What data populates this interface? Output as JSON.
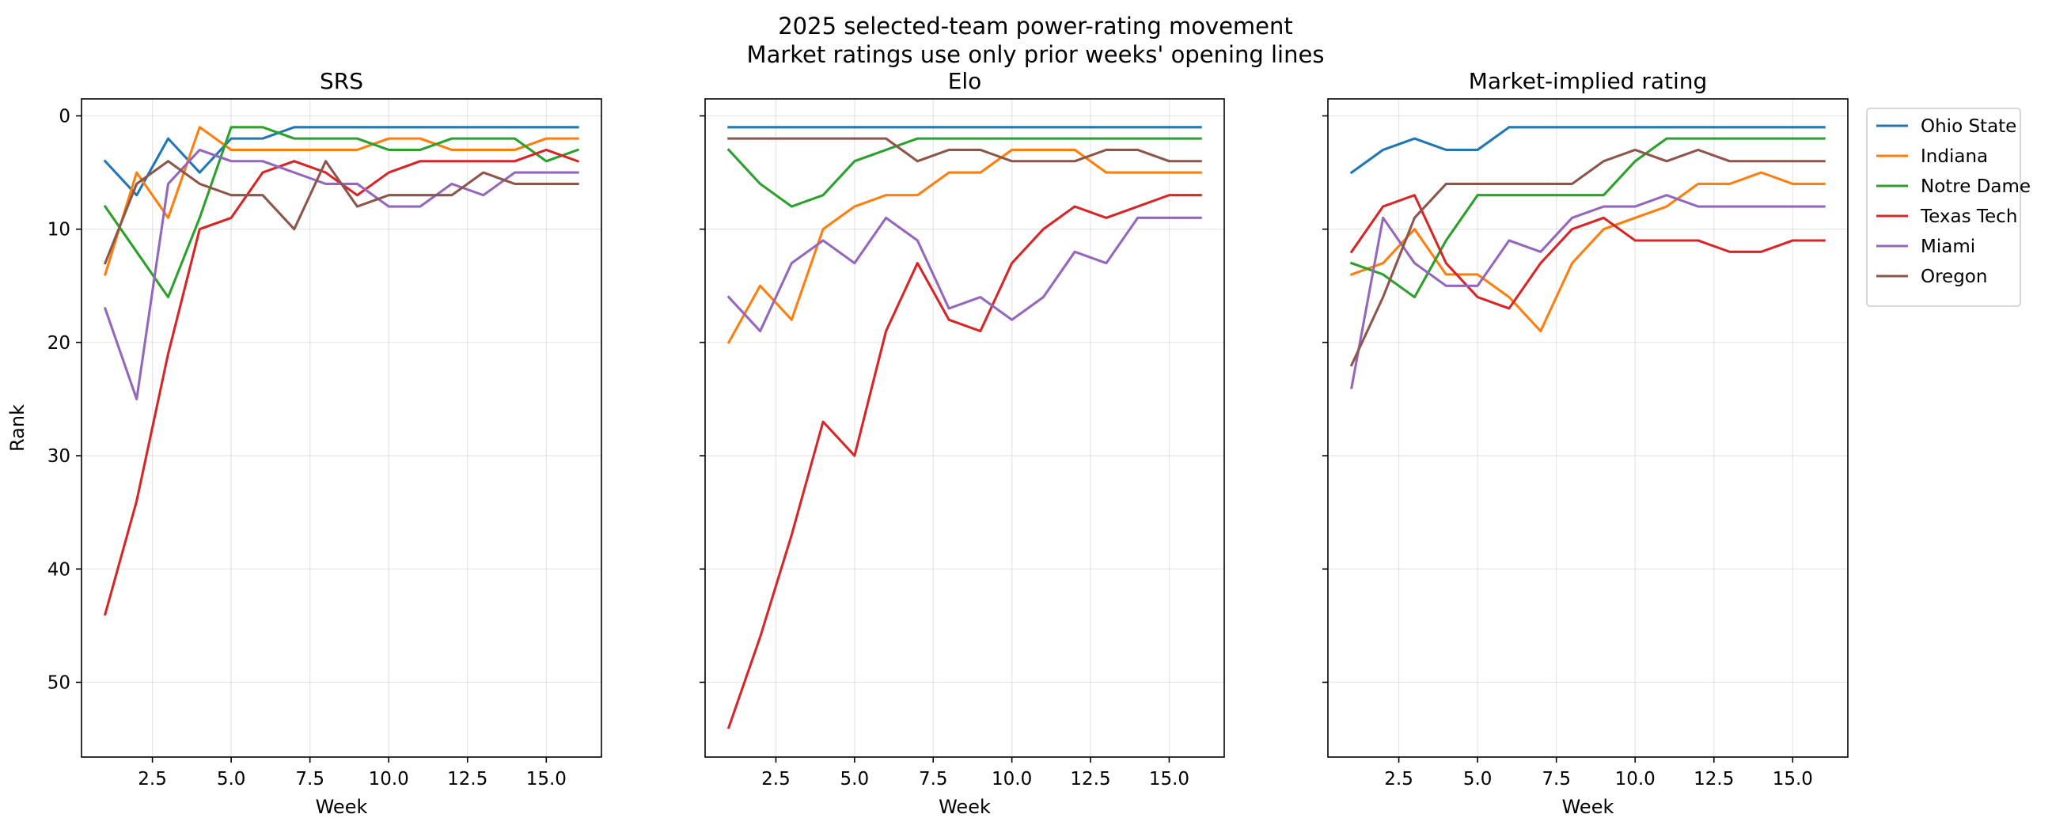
{
  "figure": {
    "title_line1": "2025 selected-team power-rating movement",
    "title_line2": "Market ratings use only prior weeks' opening lines"
  },
  "chart_data": [
    {
      "type": "line",
      "title": "SRS",
      "xlabel": "Week",
      "ylabel": "Rank",
      "y_inverted": true,
      "xlim": [
        0.25,
        16.75
      ],
      "ylim": [
        56.6,
        -1.5
      ],
      "xticks": [
        2.5,
        5.0,
        7.5,
        10.0,
        12.5,
        15.0
      ],
      "xtick_labels": [
        "2.5",
        "5.0",
        "7.5",
        "10.0",
        "12.5",
        "15.0"
      ],
      "yticks": [
        0,
        10,
        20,
        30,
        40,
        50
      ],
      "ytick_labels": [
        "0",
        "10",
        "20",
        "30",
        "40",
        "50"
      ],
      "grid": true,
      "x": [
        1,
        2,
        3,
        4,
        5,
        6,
        7,
        8,
        9,
        10,
        11,
        12,
        13,
        14,
        15,
        16
      ],
      "series": [
        {
          "name": "Ohio State",
          "color": "#1f77b4",
          "values": [
            4,
            7,
            2,
            5,
            2,
            2,
            1,
            1,
            1,
            1,
            1,
            1,
            1,
            1,
            1,
            1
          ]
        },
        {
          "name": "Indiana",
          "color": "#ff7f0e",
          "values": [
            14,
            5,
            9,
            1,
            3,
            3,
            3,
            3,
            3,
            2,
            2,
            3,
            3,
            3,
            2,
            2
          ]
        },
        {
          "name": "Notre Dame",
          "color": "#2ca02c",
          "values": [
            8,
            12,
            16,
            9,
            1,
            1,
            2,
            2,
            2,
            3,
            3,
            2,
            2,
            2,
            4,
            3
          ]
        },
        {
          "name": "Texas Tech",
          "color": "#d62728",
          "values": [
            44,
            34,
            21,
            10,
            9,
            5,
            4,
            5,
            7,
            5,
            4,
            4,
            4,
            4,
            3,
            4
          ]
        },
        {
          "name": "Miami",
          "color": "#9467bd",
          "values": [
            17,
            25,
            6,
            3,
            4,
            4,
            5,
            6,
            6,
            8,
            8,
            6,
            7,
            5,
            5,
            5
          ]
        },
        {
          "name": "Oregon",
          "color": "#8c564b",
          "values": [
            13,
            6,
            4,
            6,
            7,
            7,
            10,
            4,
            8,
            7,
            7,
            7,
            5,
            6,
            6,
            6
          ]
        }
      ]
    },
    {
      "type": "line",
      "title": "Elo",
      "xlabel": "Week",
      "ylabel": "",
      "y_inverted": true,
      "xlim": [
        0.25,
        16.75
      ],
      "ylim": [
        56.6,
        -1.5
      ],
      "xticks": [
        2.5,
        5.0,
        7.5,
        10.0,
        12.5,
        15.0
      ],
      "xtick_labels": [
        "2.5",
        "5.0",
        "7.5",
        "10.0",
        "12.5",
        "15.0"
      ],
      "yticks": [
        0,
        10,
        20,
        30,
        40,
        50
      ],
      "ytick_labels": [],
      "grid": true,
      "x": [
        1,
        2,
        3,
        4,
        5,
        6,
        7,
        8,
        9,
        10,
        11,
        12,
        13,
        14,
        15,
        16
      ],
      "series": [
        {
          "name": "Ohio State",
          "color": "#1f77b4",
          "values": [
            1,
            1,
            1,
            1,
            1,
            1,
            1,
            1,
            1,
            1,
            1,
            1,
            1,
            1,
            1,
            1
          ]
        },
        {
          "name": "Indiana",
          "color": "#ff7f0e",
          "values": [
            20,
            15,
            18,
            10,
            8,
            7,
            7,
            5,
            5,
            3,
            3,
            3,
            5,
            5,
            5,
            5
          ]
        },
        {
          "name": "Notre Dame",
          "color": "#2ca02c",
          "values": [
            3,
            6,
            8,
            7,
            4,
            3,
            2,
            2,
            2,
            2,
            2,
            2,
            2,
            2,
            2,
            2
          ]
        },
        {
          "name": "Texas Tech",
          "color": "#d62728",
          "values": [
            54,
            46,
            37,
            27,
            30,
            19,
            13,
            18,
            19,
            13,
            10,
            8,
            9,
            8,
            7,
            7
          ]
        },
        {
          "name": "Miami",
          "color": "#9467bd",
          "values": [
            16,
            19,
            13,
            11,
            13,
            9,
            11,
            17,
            16,
            18,
            16,
            12,
            13,
            9,
            9,
            9
          ]
        },
        {
          "name": "Oregon",
          "color": "#8c564b",
          "values": [
            2,
            2,
            2,
            2,
            2,
            2,
            4,
            3,
            3,
            4,
            4,
            4,
            3,
            3,
            4,
            4
          ]
        }
      ]
    },
    {
      "type": "line",
      "title": "Market-implied rating",
      "xlabel": "Week",
      "ylabel": "",
      "y_inverted": true,
      "xlim": [
        0.25,
        16.75
      ],
      "ylim": [
        56.6,
        -1.5
      ],
      "xticks": [
        2.5,
        5.0,
        7.5,
        10.0,
        12.5,
        15.0
      ],
      "xtick_labels": [
        "2.5",
        "5.0",
        "7.5",
        "10.0",
        "12.5",
        "15.0"
      ],
      "yticks": [
        0,
        10,
        20,
        30,
        40,
        50
      ],
      "ytick_labels": [],
      "grid": true,
      "x": [
        1,
        2,
        3,
        4,
        5,
        6,
        7,
        8,
        9,
        10,
        11,
        12,
        13,
        14,
        15,
        16
      ],
      "series": [
        {
          "name": "Ohio State",
          "color": "#1f77b4",
          "values": [
            5,
            3,
            2,
            3,
            3,
            1,
            1,
            1,
            1,
            1,
            1,
            1,
            1,
            1,
            1,
            1
          ]
        },
        {
          "name": "Indiana",
          "color": "#ff7f0e",
          "values": [
            14,
            13,
            10,
            14,
            14,
            16,
            19,
            13,
            10,
            9,
            8,
            6,
            6,
            5,
            6,
            6
          ]
        },
        {
          "name": "Notre Dame",
          "color": "#2ca02c",
          "values": [
            13,
            14,
            16,
            11,
            7,
            7,
            7,
            7,
            7,
            4,
            2,
            2,
            2,
            2,
            2,
            2
          ]
        },
        {
          "name": "Texas Tech",
          "color": "#d62728",
          "values": [
            12,
            8,
            7,
            13,
            16,
            17,
            13,
            10,
            9,
            11,
            11,
            11,
            12,
            12,
            11,
            11
          ]
        },
        {
          "name": "Miami",
          "color": "#9467bd",
          "values": [
            24,
            9,
            13,
            15,
            15,
            11,
            12,
            9,
            8,
            8,
            7,
            8,
            8,
            8,
            8,
            8
          ]
        },
        {
          "name": "Oregon",
          "color": "#8c564b",
          "values": [
            22,
            16,
            9,
            6,
            6,
            6,
            6,
            6,
            4,
            3,
            4,
            3,
            4,
            4,
            4,
            4
          ]
        }
      ]
    }
  ],
  "legend": {
    "placement": "outside right, upper",
    "entries": [
      {
        "label": "Ohio State",
        "color": "#1f77b4"
      },
      {
        "label": "Indiana",
        "color": "#ff7f0e"
      },
      {
        "label": "Notre Dame",
        "color": "#2ca02c"
      },
      {
        "label": "Texas Tech",
        "color": "#d62728"
      },
      {
        "label": "Miami",
        "color": "#9467bd"
      },
      {
        "label": "Oregon",
        "color": "#8c564b"
      }
    ]
  }
}
